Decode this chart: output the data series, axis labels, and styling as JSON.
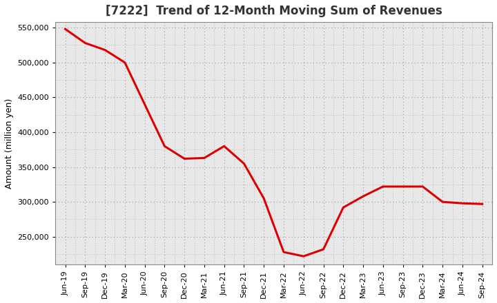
{
  "title": "[7222]  Trend of 12-Month Moving Sum of Revenues",
  "ylabel": "Amount (million yen)",
  "line_color": "#dd0000",
  "background_color": "#ffffff",
  "plot_bg_color": "#e8e8e8",
  "grid_color": "#999999",
  "x_labels": [
    "Jun-19",
    "Sep-19",
    "Dec-19",
    "Mar-20",
    "Jun-20",
    "Sep-20",
    "Dec-20",
    "Mar-21",
    "Jun-21",
    "Sep-21",
    "Dec-21",
    "Mar-22",
    "Jun-22",
    "Sep-22",
    "Dec-22",
    "Mar-23",
    "Jun-23",
    "Sep-23",
    "Dec-23",
    "Mar-24",
    "Jun-24",
    "Sep-24"
  ],
  "values": [
    548000,
    528000,
    518000,
    500000,
    440000,
    380000,
    362000,
    363000,
    380000,
    355000,
    305000,
    228000,
    222000,
    232000,
    292000,
    308000,
    322000,
    322000,
    322000,
    300000,
    298000,
    297000
  ],
  "ylim_min": 210000,
  "ylim_max": 558000,
  "yticks": [
    250000,
    300000,
    350000,
    400000,
    450000,
    500000,
    550000
  ],
  "title_fontsize": 12,
  "tick_fontsize": 8,
  "ylabel_fontsize": 9,
  "linewidth": 2.2
}
